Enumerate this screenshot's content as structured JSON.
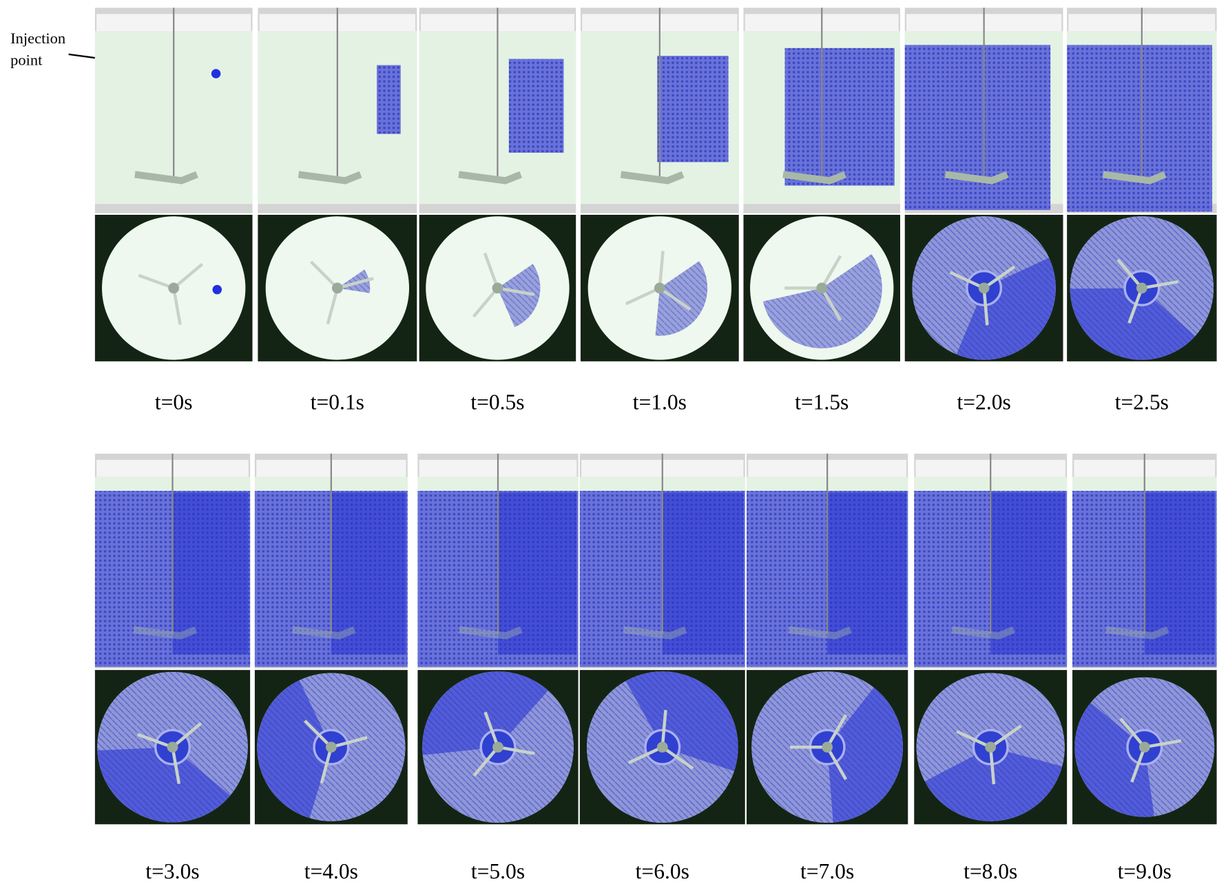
{
  "annotation": {
    "lines": [
      "Injection",
      "point"
    ]
  },
  "rows": [
    [
      "t=0s",
      "t=0.1s",
      "t=0.5s",
      "t=1.0s",
      "t=1.5s",
      "t=2.0s",
      "t=2.5s"
    ],
    [
      "t=3.0s",
      "t=4.0s",
      "t=5.0s",
      "t=6.0s",
      "t=7.0s",
      "t=8.0s",
      "t=9.0s"
    ]
  ]
}
